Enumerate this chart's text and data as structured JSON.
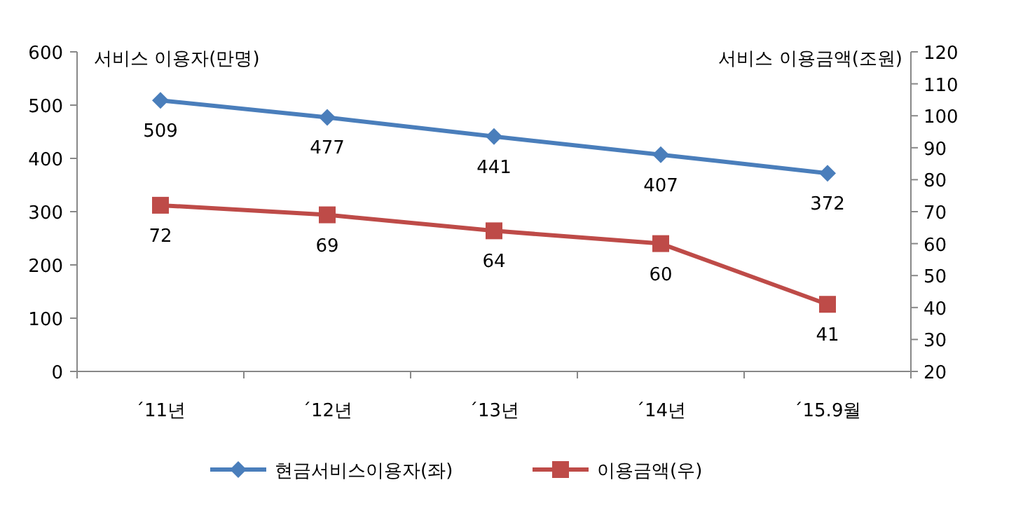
{
  "chart_data": {
    "type": "line",
    "ylabel": "서비스 이용자(만명)",
    "y2label": "서비스 이용금액(조원)",
    "categories": [
      "´11년",
      "´12년",
      "´13년",
      "´14년",
      "´15.9월"
    ],
    "series": [
      {
        "name": "현금서비스이용자(좌)",
        "color": "#4a7ebb",
        "marker": "diamond",
        "values": [
          509,
          477,
          441,
          407,
          372
        ]
      },
      {
        "name": "이용금액(우)",
        "color": "#be4b48",
        "marker": "square",
        "axis": "y2",
        "values": [
          72,
          69,
          64,
          60,
          41
        ]
      }
    ],
    "ylim": [
      0,
      600
    ],
    "yticks": [
      0,
      100,
      200,
      300,
      400,
      500,
      600
    ],
    "y2lim": [
      20,
      120
    ],
    "y2ticks": [
      20,
      30,
      40,
      50,
      60,
      70,
      80,
      90,
      100,
      110,
      120
    ],
    "data_labels": true,
    "grid": false,
    "legend": "bottom",
    "line_style": "solid"
  }
}
